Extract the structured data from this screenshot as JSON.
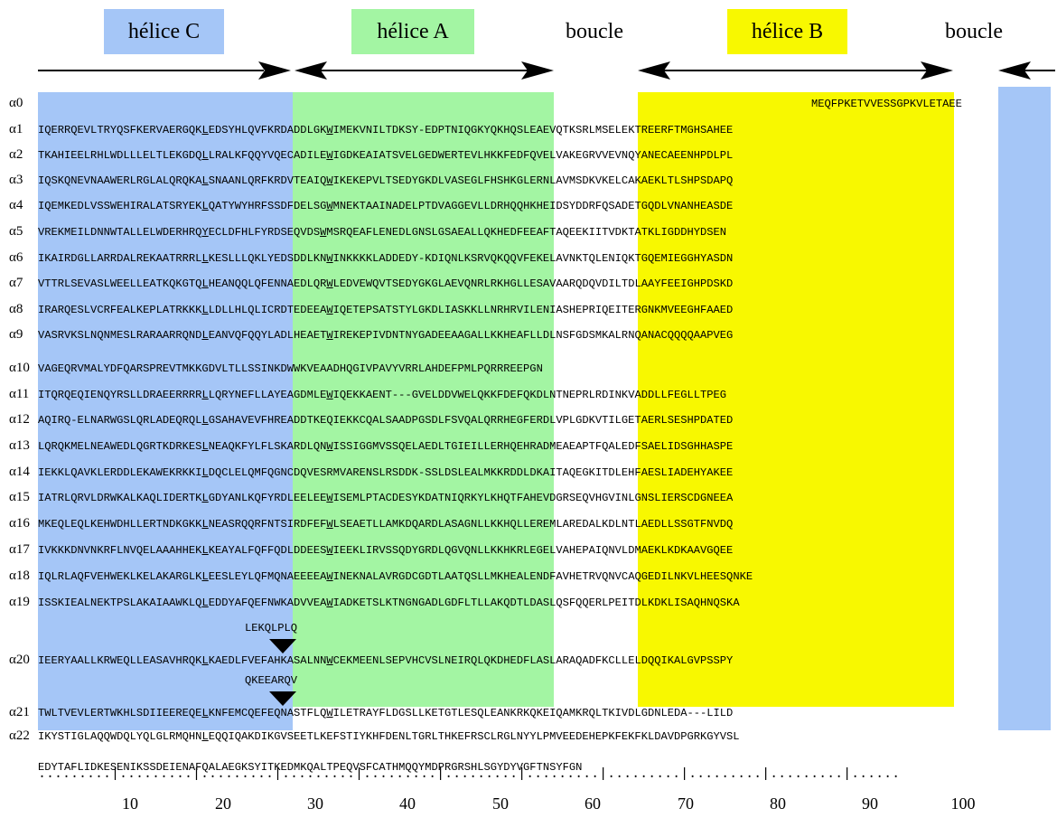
{
  "headers": {
    "helix_c": "hélice C",
    "helix_a": "hélice A",
    "loop1": "boucle",
    "helix_b": "hélice B",
    "loop2": "boucle"
  },
  "colors": {
    "helix_c": "#a5c6f7",
    "helix_a": "#a3f5a3",
    "helix_b": "#f8f800"
  },
  "rows": [
    {
      "label": "α0",
      "pre": "",
      "u": "",
      "post": "",
      "tail": "MEQFPKETVVESSGPKVLETAEE"
    },
    {
      "label": "α1",
      "pre": "IQERRQEVLTRYQSFKERVAERGQK",
      "u": "L",
      "post": "EDSYHLQVFKRDADDLGK",
      "w": "W",
      "rest": "IMEKVNILTDKSY-EDPTNIQGKYQKHQSLEAEVQTKSRLMSELEKTREERFTMGHSAHEE"
    },
    {
      "label": "α2",
      "pre": "TKAHIEELRHLWDLLLELTLEKGDQ",
      "u": "L",
      "post": "LRALKFQQYVQECADILE",
      "w": "W",
      "rest": "IGDKEAIATSVELGEDWERTEVLHKKFEDFQVELVAKEGRVVEVNQYANECAEENHPDLPL"
    },
    {
      "label": "α3",
      "pre": "IQSKQNEVNAAWERLRGLALQRQKA",
      "u": "L",
      "post": "SNAANLQRFKRDVTEAIQ",
      "w": "W",
      "rest": "IKEKEPVLTSEDYGKDLVASEGLFHSHKGLERNLAVMSDKVKELCAKAEKLTLSHPSDAPQ"
    },
    {
      "label": "α4",
      "pre": "IQEMKEDLVSSWEHIRALATSRYEK",
      "u": "L",
      "post": "QATYWYHRFSSDFDELSG",
      "w": "W",
      "rest": "MNEKTAAINADELPTDVAGGEVLLDRHQQHKHEIDSYDDRFQSADETGQDLVNANHEASDE"
    },
    {
      "label": "α5",
      "pre": "VREKMEILDNNWTALLELWDERHRQ",
      "u": "Y",
      "post": "ECLDFHLFYRDSEQVDS",
      "w": "W",
      "rest": "MSRQEAFLENEDLGNSLGSAEALLQKHEDFEEAFTAQEEKIITVDKTATKLIGDDHYDSEN",
      "wpad": " "
    },
    {
      "label": "α6",
      "pre": "IKAIRDGLLARRDALREKAATRRRL",
      "u": "L",
      "post": "KESLLLQKLYEDSDDLKN",
      "w": "W",
      "rest": "INKKKKLADDEDY-KDIQNLKSRVQKQQVFEKELAVNKTQLENIQKTGQEMIEGGHYASDN"
    },
    {
      "label": "α7",
      "pre": "VTTRLSEVASLWEELLEATKQKGTQ",
      "u": "L",
      "post": "HEANQQLQFENNAEDLQR",
      "w": "W",
      "rest": "LEDVEWQVTSEDYGKGLAEVQNRLRKHGLLESAVAARQDQVDILTDLAAYFEEIGHPDSKD"
    },
    {
      "label": "α8",
      "pre": "IRARQESLVCRFEALKEPLATRKKK",
      "u": "L",
      "post": "LDLLHLQLICRDTEDEEA",
      "w": "W",
      "rest": "IQETEPSATSTYLGKDLIASKKLLNRHRVILENIASHEPRIQEITERGNKMVEEGHFAAED"
    },
    {
      "label": "α9",
      "pre": "VASRVKSLNQNMESLRARAARRQND",
      "u": "L",
      "post": "EANVQFQQYLADLHEAET",
      "w": "W",
      "rest": "IREKEPIVDNTNYGADEEAAGALLKKHEAFLLDLNSFGDSMKALRNQANACQQQQAAPVEG"
    },
    {
      "label": "α10",
      "pre": "",
      "u": "",
      "post": "",
      "tail": "VAGEQRVMALYDFQARSPREVTMKKGDVLTLLSSINKDWWKVEAADHQGIVPAVYVRRLAHDEFPMLPQRRREEPGN"
    },
    {
      "label": "α11",
      "pre": "ITQRQEQIENQYRSLLDRAEERRRR",
      "u": "L",
      "post": "LQRYNEFLLAYEAGDMLE",
      "w": "W",
      "rest": "IQEKKAENT---GVELDDVWELQKKFDEFQKDLNTNEPRLRDINKVADDLLFEGLLTPEG"
    },
    {
      "label": "α12",
      "pre": "AQIRQ-ELNARWGSLQRLADEQRQL",
      "u": "L",
      "post": "GSAHAVEVFHREADDTKEQIEKKCQALSAADPGSDLFSVQALQRRHEGFERDLVPLGDKVTILGETAERLSESHPDATED",
      "w": "",
      "rest": ""
    },
    {
      "label": "α13",
      "pre": "LQRQKMELNEAWEDLQGRTKDRKES",
      "u": "L",
      "post": "NEAQKFYLFLSKARDLQN",
      "w": "W",
      "rest": "ISSIGGMVSSQELAEDLTGIEILLERHQEHRADMEAEAPTFQALEDFSAELIDSGHHASPE"
    },
    {
      "label": "α14",
      "pre": "IEKKLQAVKLERDDLEKAWEKRKKI",
      "u": "L",
      "post": "DQCLELQMFQGNCDQVESRMVARENSLRSDDK-SSLDSLEALMKKRDDLDKAITAQEGKITDLEHFAESLIADEHYAKEE",
      "w": "",
      "rest": ""
    },
    {
      "label": "α15",
      "pre": "IATRLQRVLDRWKALKAQLIDERTK",
      "u": "L",
      "post": "GDYANLKQFYRDLEELEE",
      "w": "W",
      "rest": "ISEMLPTACDESYKDATNIQRKYLKHQTFAHEVDGRSEQVHGVINLGNSLIERSCDGNEEA"
    },
    {
      "label": "α16",
      "pre": "MKEQLEQLKEHWDHLLERTNDKGKK",
      "u": "L",
      "post": "NEASRQQRFNTSIRDFEF",
      "w": "W",
      "rest": "LSEAETLLAMKDQARDLASAGNLLKKHQLLEREMLAREDALKDLNTLAEDLLSSGTFNVDQ"
    },
    {
      "label": "α17",
      "pre": "IVKKKDNVNKRFLNVQELAAAHHEK",
      "u": "L",
      "post": "KEAYALFQFFQDLDDEES",
      "w": "W",
      "rest": "IEEKLIRVSSQDYGRDLQGVQNLLKKHKRLEGELVAHEPAIQNVLDMAEKLKDKAAVGQEE"
    },
    {
      "label": "α18",
      "pre": "IQLRLAQFVEHWEKLKELAKARGLK",
      "u": "L",
      "post": "EESLEYLQFMQNAEEEEA",
      "w": "W",
      "rest": "INEKNALAVRGDCGDTLAATQSLLMKHEALENDFAVHETRVQNVCAQGEDILNKVLHEESQNKE"
    },
    {
      "label": "α19",
      "pre": "ISSKIEALNEKTPSLAKAIAAWKLQ",
      "u": "L",
      "post": "EDDYAFQEFNWKADVVEA",
      "w": "W",
      "rest": "IADKETSLKTNGNGADLGDFLTLLAKQDTLDASLQSFQQERLPEITDLKDKLISAQHNQSKA"
    },
    {
      "label": "α20",
      "pre": "IEERYAALLKRWEQLLEASAVHRQK",
      "u": "L",
      "post": "KAEDLFVEFAHKASALNN",
      "w": "W",
      "rest": "CEKMEENLSEPVHCVSLNEIRQLQKDHEDFLASLARAQADFKCLLELDQQIKALGVPSSPY"
    },
    {
      "label": "α21",
      "pre": "TWLTVEVLERTWKHLSDIIEEREQE",
      "u": "L",
      "post": "KNFEMCQEFEQNASTFLQ",
      "w": "W",
      "rest": "ILETRAYFLDGSLLKETGTLESQLEANKRKQKEIQAMKRQLTKIVDLGDNLEDA---LILD"
    },
    {
      "label": "α22",
      "pre": "IKYSTIGLAQQWDQLYQLGLRMQHN",
      "u": "L",
      "post": "EQQIQAKDIKGVSEETLKEFSTIYKHFDENLTGRLTHKEFRSCLRGLNYYLPMVEEDEHEPKFEKFKLDAVDPGRKGYVSL",
      "w": "",
      "rest": ""
    },
    {
      "label": "",
      "pre": "",
      "u": "",
      "post": "",
      "tail": "EDYTAFLIDKESENIKSSDEIENAFQALAEGKSYITKEDMKQALTPEQVSFCATHMQQYMDPRGRSHLSGYDYVGFTNSYFGN"
    }
  ],
  "inserts": [
    {
      "text": "LEKQLPLQ"
    },
    {
      "text": "QKEEARQV"
    }
  ],
  "ruler": {
    "dots": ".........|.........|.........|.........|.........|.........|.........|.........|.........|.........|......",
    "ticks": [
      "10",
      "20",
      "30",
      "40",
      "50",
      "60",
      "70",
      "80",
      "90",
      "100"
    ]
  }
}
